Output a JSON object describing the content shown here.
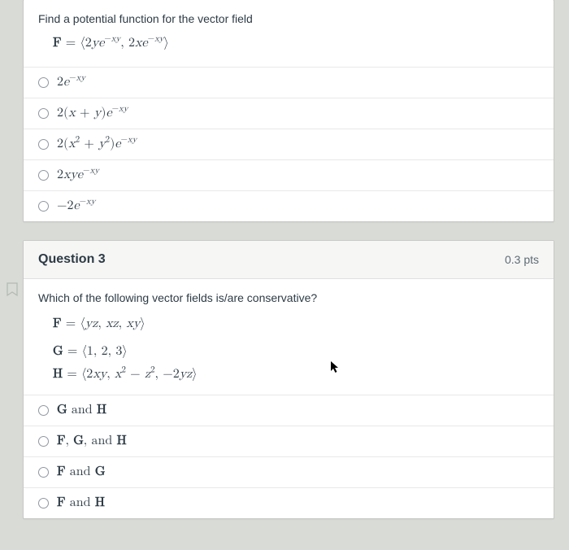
{
  "colors": {
    "page_bg": "#d8dbd6",
    "card_bg": "#ffffff",
    "border": "#c7c9c6",
    "text": "#2d3b45"
  },
  "q2": {
    "prompt": "Find a potential function for the vector field",
    "field_html": "<span class='bold'>F</span> = ⟨2<i>y</i><i>e</i><sup>−<i>xy</i></sup>, 2<i>x</i><i>e</i><sup>−<i>xy</i></sup>⟩",
    "choices": [
      "2<i>e</i><sup>−<i>xy</i></sup>",
      "2(<i>x</i> + <i>y</i>)<i>e</i><sup>−<i>xy</i></sup>",
      "2(<i>x</i><sup>2</sup> + <i>y</i><sup>2</sup>)<i>e</i><sup>−<i>xy</i></sup>",
      "2<i>xy</i><i>e</i><sup>−<i>xy</i></sup>",
      "−2<i>e</i><sup>−<i>xy</i></sup>"
    ]
  },
  "q3": {
    "header": "Question 3",
    "points": "0.3 pts",
    "prompt": "Which of the following vector fields is/are conservative?",
    "eqs": {
      "F": "<span class='bold'>F</span> = ⟨<i>yz</i>, <i>xz</i>, <i>xy</i>⟩",
      "G": "<span class='bold'>G</span> = ⟨1, 2, 3⟩",
      "H": "<span class='bold'>H</span> = ⟨2<i>xy</i>, <i>x</i><sup>2</sup> − <i>z</i><sup>2</sup>, −2<i>yz</i>⟩"
    },
    "choices": [
      "<span class='bold'>G</span> and <span class='bold'>H</span>",
      "<span class='bold'>F</span>, <span class='bold'>G</span>, and <span class='bold'>H</span>",
      "<span class='bold'>F</span> and <span class='bold'>G</span>",
      "<span class='bold'>F</span> and <span class='bold'>H</span>"
    ]
  }
}
